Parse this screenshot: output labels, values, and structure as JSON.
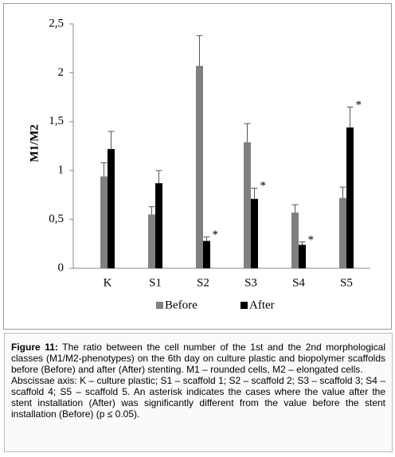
{
  "chart_data": {
    "type": "bar",
    "y_label": "M1/M2",
    "categories": [
      "K",
      "S1",
      "S2",
      "S3",
      "S4",
      "S5"
    ],
    "series": [
      {
        "name": "Before",
        "color": "#808080",
        "values": [
          0.94,
          0.55,
          2.07,
          1.29,
          0.57,
          0.72
        ],
        "errors": [
          0.14,
          0.08,
          0.31,
          0.19,
          0.08,
          0.11
        ],
        "significance": [
          null,
          null,
          null,
          null,
          null,
          null
        ]
      },
      {
        "name": "After",
        "color": "#000000",
        "values": [
          1.22,
          0.87,
          0.28,
          0.71,
          0.24,
          1.44
        ],
        "errors": [
          0.18,
          0.13,
          0.04,
          0.11,
          0.03,
          0.21
        ],
        "significance": [
          null,
          null,
          "*",
          "*",
          "*",
          "*"
        ]
      }
    ],
    "ylim": [
      0,
      2.5
    ],
    "yticks": [
      0,
      {
        "value": 0.5,
        "label": "0,5"
      },
      1,
      {
        "value": 1.5,
        "label": "1,5"
      },
      2,
      {
        "value": 2.5,
        "label": "2,5"
      }
    ],
    "grid": false
  },
  "caption": {
    "label": "Figure 11:",
    "text": "The ratio between the cell number of the 1st and the 2nd morphological classes (M1/M2-phenotypes) on the 6th day on culture plastic and biopolymer scaffolds before (Before) and after (After) stenting. M1 – rounded cells, M2 – elongated cells.",
    "note": "Abscissae axis: K – culture plastic; S1 – scaffold 1; S2 – scaffold 2; S3 – scaffold 3; S4 – scaffold 4; S5 – scaffold 5. An asterisk indicates the cases where the value after the stent installation (After) was significantly different from the value before the stent installation (Before) (p ≤ 0.05)."
  }
}
